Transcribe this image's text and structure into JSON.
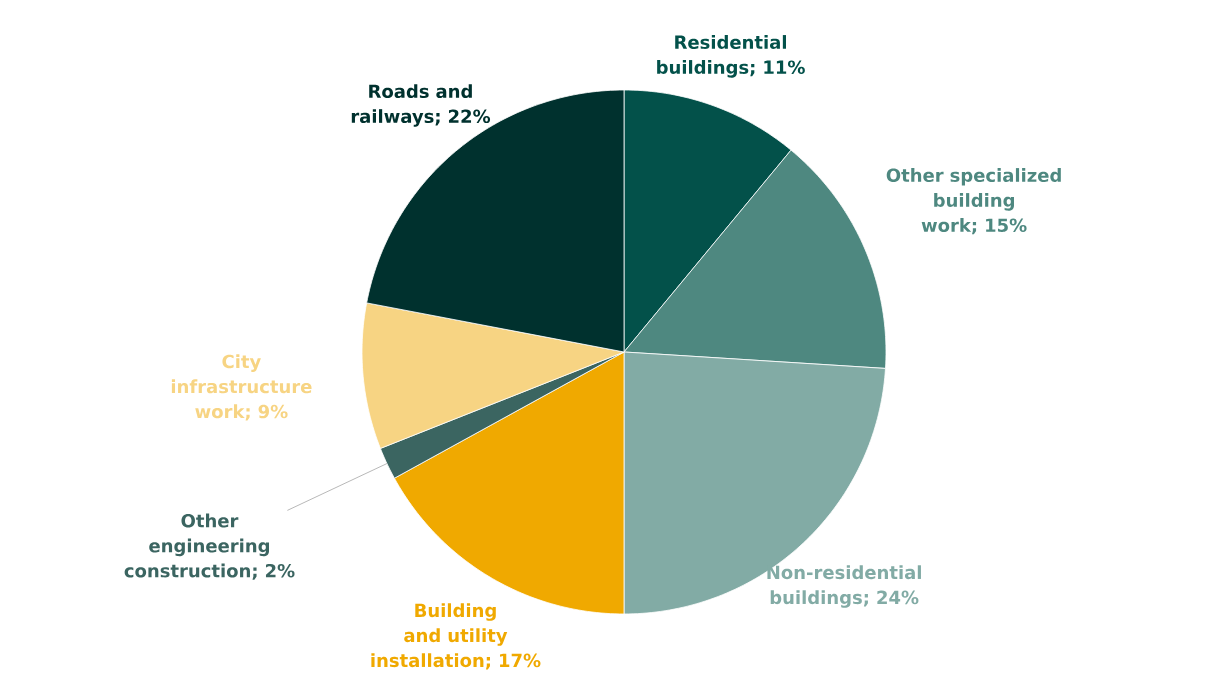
{
  "chart_data": {
    "type": "pie",
    "categories": [
      "Residential buildings",
      "Other specialized building work",
      "Non-residential buildings",
      "Building and utility installation",
      "Other engineering construction",
      "City infrastructure work",
      "Roads and railways"
    ],
    "values": [
      11,
      15,
      24,
      17,
      2,
      9,
      22
    ],
    "colors": [
      "#03514a",
      "#4e8880",
      "#82aba5",
      "#f0a900",
      "#3b6561",
      "#f7d483",
      "#00312e"
    ],
    "value_labels": [
      "; 11%",
      "; 15%",
      "; 24%",
      "; 17%",
      "; 2%",
      "; 9%",
      "; 22%"
    ],
    "legend": false
  }
}
